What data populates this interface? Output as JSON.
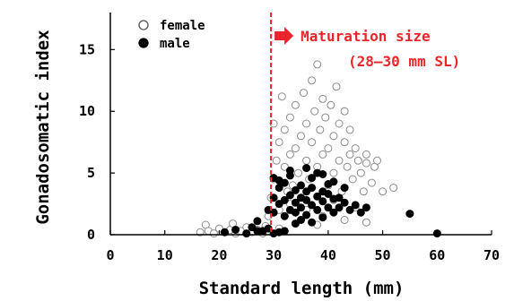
{
  "chart_data": {
    "type": "scatter",
    "xlabel": "Standard length (mm)",
    "ylabel": "Gonadosomatic index",
    "xlim": [
      0,
      70
    ],
    "ylim": [
      0,
      18
    ],
    "x_ticks": [
      "0",
      "10",
      "20",
      "30",
      "40",
      "50",
      "60",
      "70"
    ],
    "y_ticks": [
      "0",
      "5",
      "10",
      "15"
    ],
    "legend_position": "top-left",
    "grid": false,
    "series": [
      {
        "name": "female",
        "marker": "open-circle",
        "color": "#8c8c8c",
        "points": [
          [
            16.5,
            0.2
          ],
          [
            17.5,
            0.8
          ],
          [
            18,
            0.3
          ],
          [
            19,
            0.1
          ],
          [
            20,
            0.5
          ],
          [
            21,
            0.2
          ],
          [
            22,
            0.4
          ],
          [
            22.5,
            0.9
          ],
          [
            23,
            0.1
          ],
          [
            24,
            0.3
          ],
          [
            25,
            0.6
          ],
          [
            26,
            0.2
          ],
          [
            27,
            0.4
          ],
          [
            28,
            0.1
          ],
          [
            28.5,
            0.7
          ],
          [
            29,
            1.5
          ],
          [
            29.5,
            3.0
          ],
          [
            30,
            4.5
          ],
          [
            30,
            9.0
          ],
          [
            30.5,
            6.0
          ],
          [
            31,
            2.0
          ],
          [
            31,
            7.5
          ],
          [
            31.5,
            11.2
          ],
          [
            32,
            5.5
          ],
          [
            32,
            8.5
          ],
          [
            32.5,
            3.5
          ],
          [
            33,
            6.5
          ],
          [
            33,
            9.5
          ],
          [
            33.5,
            4.0
          ],
          [
            34,
            7.0
          ],
          [
            34,
            10.5
          ],
          [
            34.5,
            5.0
          ],
          [
            35,
            8.0
          ],
          [
            35,
            3.0
          ],
          [
            35.5,
            11.5
          ],
          [
            36,
            6.0
          ],
          [
            36,
            9.0
          ],
          [
            36.5,
            4.5
          ],
          [
            37,
            12.5
          ],
          [
            37,
            7.5
          ],
          [
            37.5,
            10.0
          ],
          [
            38,
            13.8
          ],
          [
            38,
            5.5
          ],
          [
            38.5,
            8.5
          ],
          [
            39,
            6.5
          ],
          [
            39,
            11.0
          ],
          [
            39.5,
            9.5
          ],
          [
            40,
            4.0
          ],
          [
            40,
            7.0
          ],
          [
            40.5,
            10.5
          ],
          [
            41,
            8.0
          ],
          [
            41,
            5.0
          ],
          [
            41.5,
            12.0
          ],
          [
            42,
            6.0
          ],
          [
            42,
            9.0
          ],
          [
            42.5,
            3.5
          ],
          [
            43,
            7.5
          ],
          [
            43,
            10.0
          ],
          [
            43.5,
            5.5
          ],
          [
            44,
            8.5
          ],
          [
            44,
            6.5
          ],
          [
            44.5,
            4.5
          ],
          [
            45,
            7.0
          ],
          [
            45.5,
            6.0
          ],
          [
            46,
            5.0
          ],
          [
            46.5,
            3.5
          ],
          [
            47,
            6.5
          ],
          [
            47,
            5.8
          ],
          [
            48,
            4.2
          ],
          [
            48.5,
            5.5
          ],
          [
            49,
            6.0
          ],
          [
            50,
            3.5
          ],
          [
            52,
            3.8
          ],
          [
            33,
            2.5
          ],
          [
            36,
            2.0
          ],
          [
            39,
            1.5
          ],
          [
            41,
            2.8
          ],
          [
            43,
            1.2
          ],
          [
            45,
            2.2
          ],
          [
            47,
            1.0
          ],
          [
            35,
            1.2
          ],
          [
            38,
            0.8
          ],
          [
            31,
            0.5
          ]
        ]
      },
      {
        "name": "male",
        "marker": "filled-circle",
        "color": "#000000",
        "points": [
          [
            26,
            0.6
          ],
          [
            27,
            1.1
          ],
          [
            28,
            0.3
          ],
          [
            29,
            0.5
          ],
          [
            30,
            0.1
          ],
          [
            31,
            0.2
          ],
          [
            32,
            0.3
          ],
          [
            29,
            2.0
          ],
          [
            30,
            1.8
          ],
          [
            30,
            3.0
          ],
          [
            31,
            2.5
          ],
          [
            31,
            3.8
          ],
          [
            32,
            1.5
          ],
          [
            32,
            2.8
          ],
          [
            32,
            4.2
          ],
          [
            33,
            2.0
          ],
          [
            33,
            3.2
          ],
          [
            33,
            4.8
          ],
          [
            34,
            1.8
          ],
          [
            34,
            2.6
          ],
          [
            34,
            3.6
          ],
          [
            35,
            2.2
          ],
          [
            35,
            3.0
          ],
          [
            35,
            4.0
          ],
          [
            35,
            1.2
          ],
          [
            36,
            2.8
          ],
          [
            36,
            3.5
          ],
          [
            36,
            1.6
          ],
          [
            37,
            2.4
          ],
          [
            37,
            3.8
          ],
          [
            37,
            4.6
          ],
          [
            38,
            2.0
          ],
          [
            38,
            3.1
          ],
          [
            38,
            5.0
          ],
          [
            39,
            2.7
          ],
          [
            39,
            3.5
          ],
          [
            39,
            1.4
          ],
          [
            40,
            2.2
          ],
          [
            40,
            3.3
          ],
          [
            40,
            4.1
          ],
          [
            41,
            2.9
          ],
          [
            41,
            1.8
          ],
          [
            42,
            3.0
          ],
          [
            42,
            2.2
          ],
          [
            43,
            2.6
          ],
          [
            43,
            3.8
          ],
          [
            44,
            2.0
          ],
          [
            45,
            2.4
          ],
          [
            46,
            1.8
          ],
          [
            47,
            2.2
          ],
          [
            30,
            4.6
          ],
          [
            31,
            4.4
          ],
          [
            33,
            5.2
          ],
          [
            36,
            5.4
          ],
          [
            39,
            4.9
          ],
          [
            41,
            4.3
          ],
          [
            21,
            0.2
          ],
          [
            23,
            0.4
          ],
          [
            25,
            0.1
          ],
          [
            27,
            0.3
          ],
          [
            34,
            0.9
          ],
          [
            37,
            1.0
          ],
          [
            55,
            1.7
          ],
          [
            60,
            0.1
          ]
        ]
      }
    ],
    "annotation": {
      "label_line1": "Maturation size",
      "label_line2": "(28–30 mm SL)",
      "x": 29.5,
      "color": "#e8262b"
    }
  }
}
